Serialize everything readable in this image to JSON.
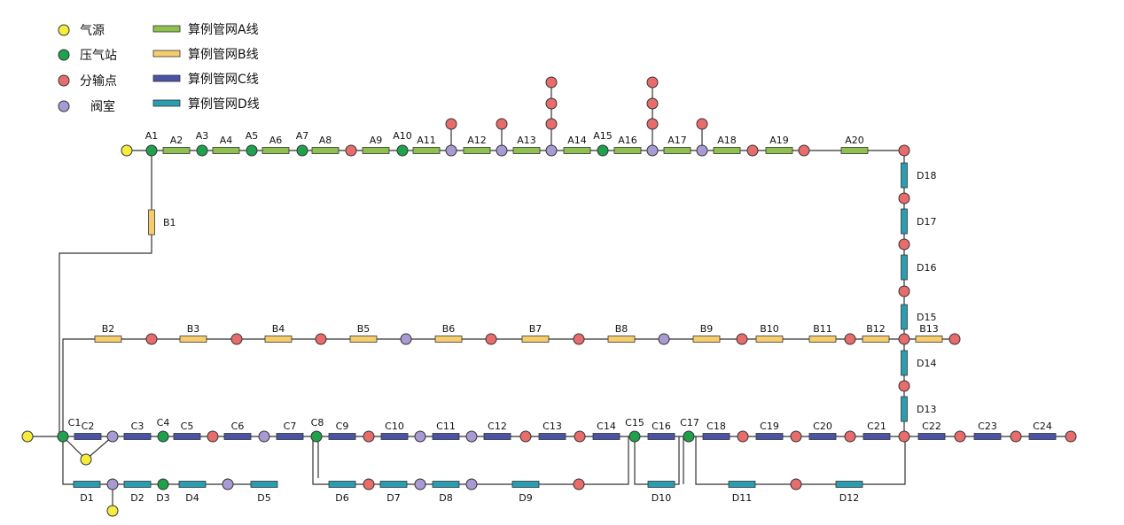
{
  "colors": {
    "source": "#f6ec3c",
    "station": "#1fa14d",
    "offtake": "#e96c6c",
    "valve": "#a89bd3",
    "lineA": "#8fc150",
    "lineB": "#f6cd6c",
    "lineC": "#4b53a6",
    "lineD": "#2a9db0"
  },
  "legend": {
    "nodes": [
      {
        "label": "气源",
        "kind": "source"
      },
      {
        "label": "压气站",
        "kind": "station"
      },
      {
        "label": "分输点",
        "kind": "offtake"
      },
      {
        "label": "阀室",
        "kind": "valve"
      }
    ],
    "lines": [
      {
        "label": "算例管网A线",
        "kind": "lineA"
      },
      {
        "label": "算例管网B线",
        "kind": "lineB"
      },
      {
        "label": "算例管网C线",
        "kind": "lineC"
      },
      {
        "label": "算例管网D线",
        "kind": "lineD"
      }
    ]
  },
  "labels": {
    "A": [
      "A1",
      "A2",
      "A3",
      "A4",
      "A5",
      "A6",
      "A7",
      "A8",
      "A9",
      "A10",
      "A11",
      "A12",
      "A13",
      "A14",
      "A15",
      "A16",
      "A17",
      "A18",
      "A19",
      "A20"
    ],
    "B": [
      "B1",
      "B2",
      "B3",
      "B4",
      "B5",
      "B6",
      "B7",
      "B8",
      "B9",
      "B10",
      "B11",
      "B12",
      "B13"
    ],
    "C": [
      "C1",
      "C2",
      "C3",
      "C4",
      "C5",
      "C6",
      "C7",
      "C8",
      "C9",
      "C10",
      "C11",
      "C12",
      "C13",
      "C14",
      "C15",
      "C16",
      "C17",
      "C18",
      "C19",
      "C20",
      "C21",
      "C22",
      "C23",
      "C24"
    ],
    "D": [
      "D1",
      "D2",
      "D3",
      "D4",
      "D5",
      "D6",
      "D7",
      "D8",
      "D9",
      "D10",
      "D11",
      "D12",
      "D13",
      "D14",
      "D15",
      "D16",
      "D17",
      "D18"
    ]
  }
}
